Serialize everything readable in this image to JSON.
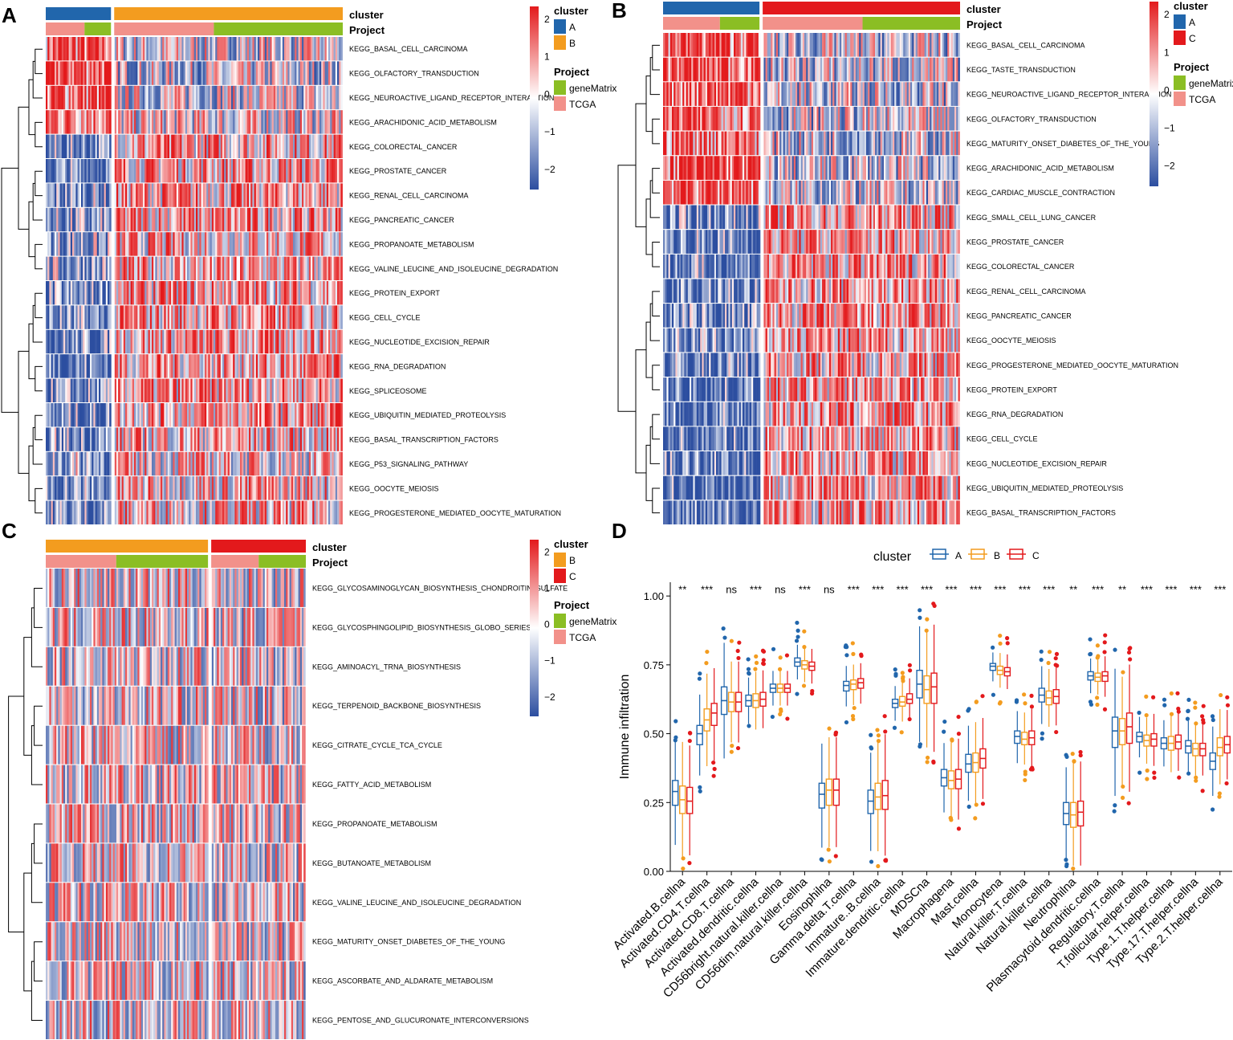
{
  "colors": {
    "cluster_A": "#2166ac",
    "cluster_B": "#f39c1f",
    "cluster_C": "#e3191c",
    "project_geneMatrix": "#8bbe24",
    "project_TCGA": "#f2918a",
    "heat_low": "#2c4ea0",
    "heat_mid": "#ffffff",
    "heat_high": "#e31a1c"
  },
  "heatmaps": [
    {
      "panel": "A",
      "annotation_labels": [
        "cluster",
        "Project"
      ],
      "rows": [
        "KEGG_BASAL_CELL_CARCINOMA",
        "KEGG_OLFACTORY_TRANSDUCTION",
        "KEGG_NEUROACTIVE_LIGAND_RECEPTOR_INTERACTION",
        "KEGG_ARACHIDONIC_ACID_METABOLISM",
        "KEGG_COLORECTAL_CANCER",
        "KEGG_PROSTATE_CANCER",
        "KEGG_RENAL_CELL_CARCINOMA",
        "KEGG_PANCREATIC_CANCER",
        "KEGG_PROPANOATE_METABOLISM",
        "KEGG_VALINE_LEUCINE_AND_ISOLEUCINE_DEGRADATION",
        "KEGG_PROTEIN_EXPORT",
        "KEGG_CELL_CYCLE",
        "KEGG_NUCLEOTIDE_EXCISION_REPAIR",
        "KEGG_RNA_DEGRADATION",
        "KEGG_SPLICEOSOME",
        "KEGG_UBIQUITIN_MEDIATED_PROTEOLYSIS",
        "KEGG_BASAL_TRANSCRIPTION_FACTORS",
        "KEGG_P53_SIGNALING_PATHWAY",
        "KEGG_OOCYTE_MEIOSIS",
        "KEGG_PROGESTERONE_MEDIATED_OOCYTE_MATURATION"
      ],
      "cluster_split": [
        "A",
        "B"
      ],
      "colorbar_ticks": [
        "2",
        "1",
        "0",
        "−1",
        "−2"
      ],
      "legend_cluster_title": "cluster",
      "legend_cluster_items": [
        "A",
        "B"
      ],
      "legend_project_title": "Project",
      "legend_project_items": [
        "geneMatrix",
        "TCGA"
      ]
    },
    {
      "panel": "B",
      "annotation_labels": [
        "cluster",
        "Project"
      ],
      "rows": [
        "KEGG_BASAL_CELL_CARCINOMA",
        "KEGG_TASTE_TRANSDUCTION",
        "KEGG_NEUROACTIVE_LIGAND_RECEPTOR_INTERACTION",
        "KEGG_OLFACTORY_TRANSDUCTION",
        "KEGG_MATURITY_ONSET_DIABETES_OF_THE_YOUNG",
        "KEGG_ARACHIDONIC_ACID_METABOLISM",
        "KEGG_CARDIAC_MUSCLE_CONTRACTION",
        "KEGG_SMALL_CELL_LUNG_CANCER",
        "KEGG_PROSTATE_CANCER",
        "KEGG_COLORECTAL_CANCER",
        "KEGG_RENAL_CELL_CARCINOMA",
        "KEGG_PANCREATIC_CANCER",
        "KEGG_OOCYTE_MEIOSIS",
        "KEGG_PROGESTERONE_MEDIATED_OOCYTE_MATURATION",
        "KEGG_PROTEIN_EXPORT",
        "KEGG_RNA_DEGRADATION",
        "KEGG_CELL_CYCLE",
        "KEGG_NUCLEOTIDE_EXCISION_REPAIR",
        "KEGG_UBIQUITIN_MEDIATED_PROTEOLYSIS",
        "KEGG_BASAL_TRANSCRIPTION_FACTORS"
      ],
      "cluster_split": [
        "A",
        "C"
      ],
      "colorbar_ticks": [
        "2",
        "1",
        "0",
        "−1",
        "−2"
      ],
      "legend_cluster_title": "cluster",
      "legend_cluster_items": [
        "A",
        "C"
      ],
      "legend_project_title": "Project",
      "legend_project_items": [
        "geneMatrix",
        "TCGA"
      ]
    },
    {
      "panel": "C",
      "annotation_labels": [
        "cluster",
        "Project"
      ],
      "rows": [
        "KEGG_GLYCOSAMINOGLYCAN_BIOSYNTHESIS_CHONDROITIN_SULFATE",
        "KEGG_GLYCOSPHINGOLIPID_BIOSYNTHESIS_GLOBO_SERIES",
        "KEGG_AMINOACYL_TRNA_BIOSYNTHESIS",
        "KEGG_TERPENOID_BACKBONE_BIOSYNTHESIS",
        "KEGG_CITRATE_CYCLE_TCA_CYCLE",
        "KEGG_FATTY_ACID_METABOLISM",
        "KEGG_PROPANOATE_METABOLISM",
        "KEGG_BUTANOATE_METABOLISM",
        "KEGG_VALINE_LEUCINE_AND_ISOLEUCINE_DEGRADATION",
        "KEGG_MATURITY_ONSET_DIABETES_OF_THE_YOUNG",
        "KEGG_ASCORBATE_AND_ALDARATE_METABOLISM",
        "KEGG_PENTOSE_AND_GLUCURONATE_INTERCONVERSIONS"
      ],
      "cluster_split": [
        "B",
        "C"
      ],
      "colorbar_ticks": [
        "2",
        "1",
        "0",
        "−1",
        "−2"
      ],
      "legend_cluster_title": "cluster",
      "legend_cluster_items": [
        "B",
        "C"
      ],
      "legend_project_title": "Project",
      "legend_project_items": [
        "geneMatrix",
        "TCGA"
      ]
    }
  ],
  "chart_data": {
    "panel": "D",
    "type": "box",
    "ylabel": "Immune infiltration",
    "ylim": [
      0,
      1.05
    ],
    "yticks": [
      "0.00",
      "0.25",
      "0.50",
      "0.75",
      "1.00"
    ],
    "legend_title": "cluster",
    "legend_items": [
      "A",
      "B",
      "C"
    ],
    "categories": [
      "Activated.B.cellna",
      "Activated.CD4.T.cellna",
      "Activated.CD8.T.cellna",
      "Activated.dendritic.cellna",
      "CD56bright.natural.killer.cellna",
      "CD56dim.natural.killer.cellna",
      "Eosinophilna",
      "Gamma.delta.T.cellna",
      "Immature..B.cellna",
      "Immature.dendritic.cellna",
      "MDSCna",
      "Macrophagena",
      "Mast.cellna",
      "Monocytena",
      "Natural.killer.T.cellna",
      "Natural.killer.cellna",
      "Neutrophilna",
      "Plasmacytoid.dendritic.cellna",
      "Regulatory.T.cellna",
      "T.follicular.helper.cellna",
      "Type.1.T.helper.cellna",
      "Type.17.T.helper.cellna",
      "Type.2.T.helper.cellna"
    ],
    "significance": [
      "**",
      "***",
      "ns",
      "***",
      "ns",
      "***",
      "ns",
      "***",
      "***",
      "***",
      "***",
      "***",
      "***",
      "***",
      "***",
      "***",
      "**",
      "***",
      "**",
      "***",
      "***",
      "***",
      "***"
    ],
    "series": [
      {
        "name": "A",
        "medians": [
          0.29,
          0.5,
          0.62,
          0.62,
          0.665,
          0.76,
          0.28,
          0.675,
          0.255,
          0.61,
          0.68,
          0.34,
          0.39,
          0.745,
          0.49,
          0.64,
          0.21,
          0.71,
          0.51,
          0.49,
          0.465,
          0.455,
          0.4
        ],
        "q1": [
          0.24,
          0.46,
          0.57,
          0.6,
          0.65,
          0.745,
          0.23,
          0.655,
          0.21,
          0.595,
          0.63,
          0.31,
          0.36,
          0.73,
          0.465,
          0.615,
          0.17,
          0.695,
          0.45,
          0.47,
          0.445,
          0.43,
          0.37
        ],
        "q3": [
          0.33,
          0.53,
          0.67,
          0.64,
          0.68,
          0.775,
          0.32,
          0.69,
          0.295,
          0.625,
          0.73,
          0.37,
          0.425,
          0.755,
          0.51,
          0.665,
          0.25,
          0.725,
          0.56,
          0.505,
          0.485,
          0.475,
          0.43
        ]
      },
      {
        "name": "B",
        "medians": [
          0.26,
          0.55,
          0.615,
          0.62,
          0.665,
          0.75,
          0.295,
          0.68,
          0.27,
          0.615,
          0.66,
          0.33,
          0.395,
          0.73,
          0.48,
          0.63,
          0.205,
          0.705,
          0.51,
          0.475,
          0.465,
          0.445,
          0.45
        ],
        "q1": [
          0.21,
          0.51,
          0.58,
          0.595,
          0.65,
          0.735,
          0.24,
          0.66,
          0.225,
          0.6,
          0.61,
          0.3,
          0.36,
          0.715,
          0.46,
          0.605,
          0.16,
          0.69,
          0.46,
          0.455,
          0.44,
          0.42,
          0.42
        ],
        "q3": [
          0.31,
          0.59,
          0.65,
          0.645,
          0.68,
          0.765,
          0.335,
          0.695,
          0.32,
          0.635,
          0.71,
          0.365,
          0.43,
          0.745,
          0.505,
          0.655,
          0.25,
          0.72,
          0.555,
          0.495,
          0.49,
          0.465,
          0.485
        ]
      },
      {
        "name": "C",
        "medians": [
          0.255,
          0.575,
          0.615,
          0.625,
          0.665,
          0.745,
          0.295,
          0.685,
          0.275,
          0.625,
          0.67,
          0.335,
          0.41,
          0.725,
          0.485,
          0.635,
          0.215,
          0.71,
          0.525,
          0.48,
          0.47,
          0.445,
          0.46
        ],
        "q1": [
          0.21,
          0.53,
          0.58,
          0.6,
          0.65,
          0.73,
          0.24,
          0.665,
          0.225,
          0.61,
          0.61,
          0.3,
          0.375,
          0.71,
          0.46,
          0.61,
          0.165,
          0.69,
          0.465,
          0.455,
          0.445,
          0.42,
          0.43
        ],
        "q3": [
          0.305,
          0.61,
          0.65,
          0.65,
          0.68,
          0.76,
          0.335,
          0.7,
          0.33,
          0.645,
          0.72,
          0.37,
          0.445,
          0.74,
          0.51,
          0.66,
          0.255,
          0.725,
          0.575,
          0.5,
          0.495,
          0.465,
          0.49
        ]
      }
    ]
  }
}
